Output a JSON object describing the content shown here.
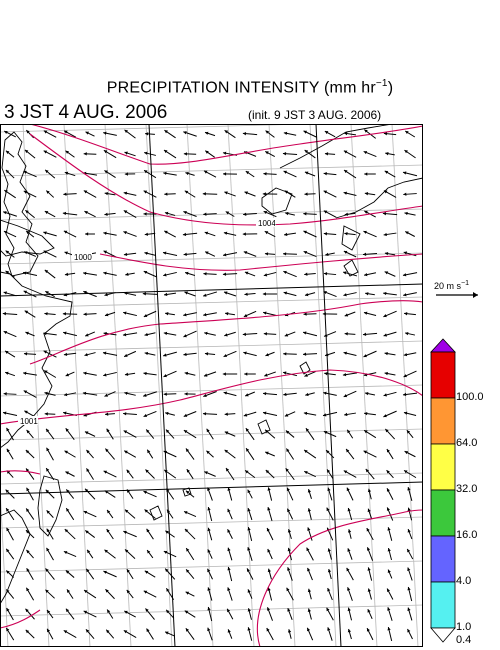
{
  "header": {
    "title_main": "PRECIPITATION INTENSITY (mm hr",
    "title_sup": "−1",
    "title_close": ")",
    "valid_time": "3 JST 4 AUG. 2006",
    "init_time": "(init. 9 JST 3 AUG. 2006)"
  },
  "reference_vector": {
    "label_main": "20 m s",
    "label_sup": "−1"
  },
  "colorbar": {
    "levels": [
      "0.4",
      "1.0",
      "4.0",
      "16.0",
      "32.0",
      "64.0",
      "100.0"
    ],
    "colors": [
      "#55f0f0",
      "#6464ff",
      "#3cc83c",
      "#ffff46",
      "#ff9633",
      "#e60000",
      "#a000e6"
    ]
  },
  "map": {
    "isobar_labels": [
      "1004",
      "1000",
      "1001"
    ],
    "isobar_color": "#cc0055",
    "wind_vectors": "visible"
  }
}
